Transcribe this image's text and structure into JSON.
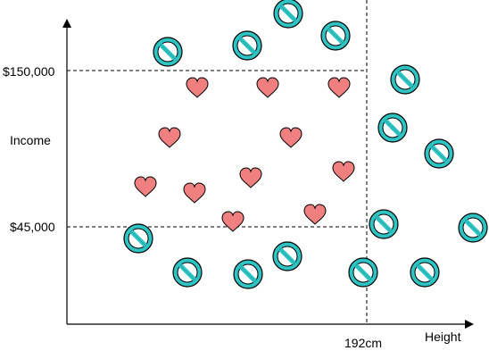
{
  "labels": {
    "y_axis": "Income",
    "x_axis": "Height",
    "threshold_high": "$150,000",
    "threshold_low": "$45,000",
    "threshold_height": "192cm"
  },
  "colors": {
    "axis": "#000000",
    "dashed": "#000000",
    "heart_fill": "#f08080",
    "heart_stroke": "#000000",
    "ban_fill": "#2ec4c4",
    "ban_stroke": "#000000"
  },
  "marker_icons": {
    "positive": "heart-icon",
    "negative": "ban-icon"
  }
}
